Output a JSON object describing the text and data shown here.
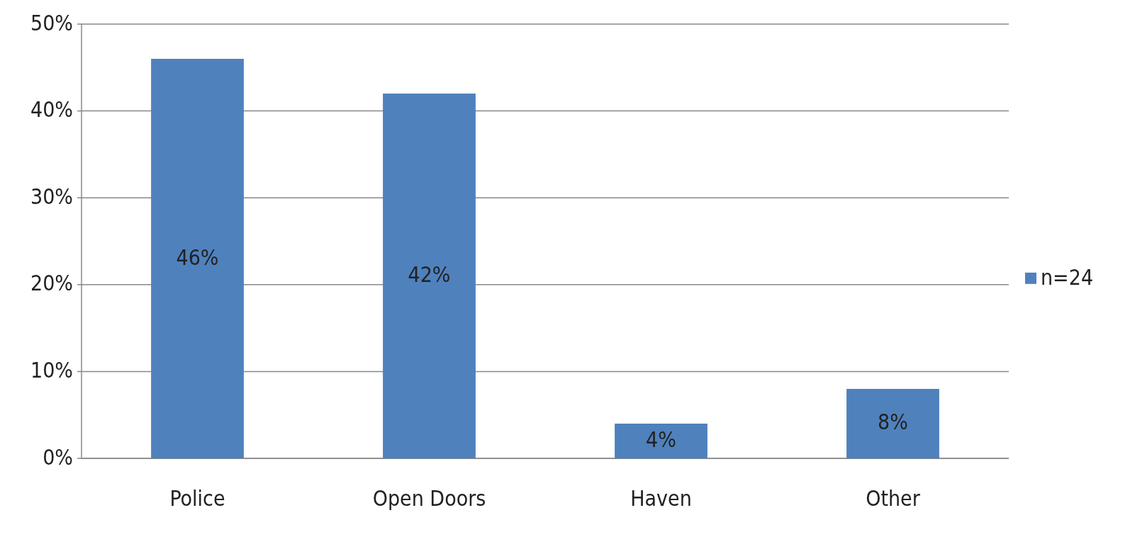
{
  "chart_data": {
    "type": "bar",
    "categories": [
      "Police",
      "Open Doors",
      "Haven",
      "Other"
    ],
    "series": [
      {
        "name": "n=24",
        "color": "#4f81bd",
        "values": [
          46,
          42,
          4,
          8
        ]
      }
    ],
    "ylim": [
      0,
      50
    ],
    "yticks": [
      {
        "value": 0,
        "label": "0%"
      },
      {
        "value": 10,
        "label": "10%"
      },
      {
        "value": 20,
        "label": "20%"
      },
      {
        "value": 30,
        "label": "30%"
      },
      {
        "value": 40,
        "label": "40%"
      },
      {
        "value": 50,
        "label": "50%"
      }
    ],
    "value_labels": [
      "46%",
      "42%",
      "4%",
      "8%"
    ],
    "grid": "y",
    "legend": "right"
  }
}
